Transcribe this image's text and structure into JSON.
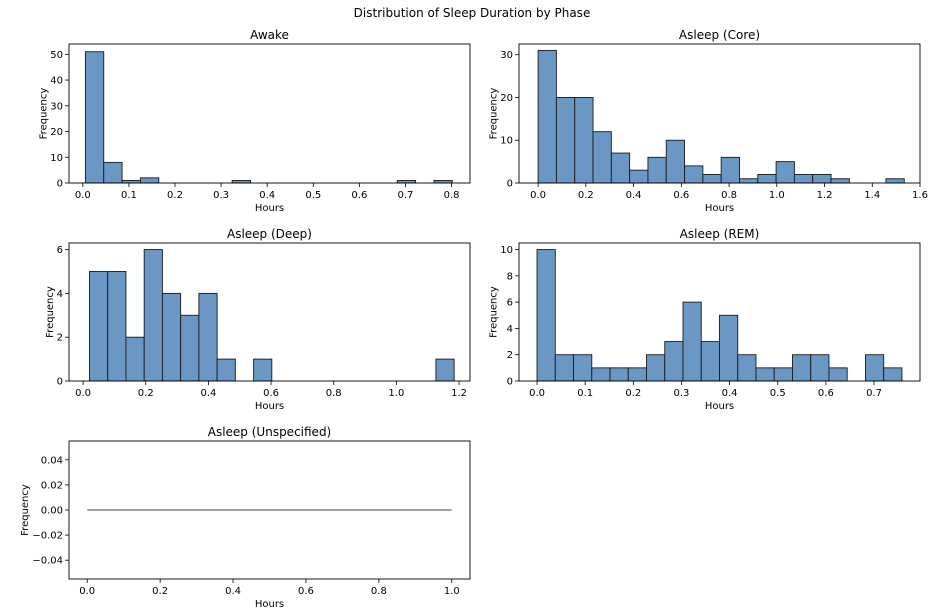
{
  "figure_title": "Distribution of Sleep Duration by Phase",
  "style": {
    "bar_fill": "#6a97c4",
    "bar_edge": "#1a1a1a",
    "flat_line": "#808080"
  },
  "chart_data": [
    {
      "type": "bar",
      "title": "Awake",
      "xlabel": "Hours",
      "ylabel": "Frequency",
      "xlim": [
        -0.03,
        0.84
      ],
      "ylim": [
        0,
        54
      ],
      "xticks": [
        0.0,
        0.1,
        0.2,
        0.3,
        0.4,
        0.5,
        0.6,
        0.7,
        0.8
      ],
      "xtick_labels": [
        "0.0",
        "0.1",
        "0.2",
        "0.3",
        "0.4",
        "0.5",
        "0.6",
        "0.7",
        "0.8"
      ],
      "yticks": [
        0,
        10,
        20,
        30,
        40,
        50
      ],
      "ytick_labels": [
        "0",
        "10",
        "20",
        "30",
        "40",
        "50"
      ],
      "bin_edges": [
        0.0056,
        0.0454,
        0.0852,
        0.125,
        0.1648,
        0.2046,
        0.2444,
        0.2842,
        0.324,
        0.3638,
        0.4036,
        0.4434,
        0.4832,
        0.523,
        0.5628,
        0.6026,
        0.6424,
        0.6822,
        0.722,
        0.7618,
        0.8016
      ],
      "values": [
        51,
        8,
        1,
        2,
        0,
        0,
        0,
        0,
        1,
        0,
        0,
        0,
        0,
        0,
        0,
        0,
        0,
        1,
        0,
        1
      ]
    },
    {
      "type": "bar",
      "title": "Asleep (Core)",
      "xlabel": "Hours",
      "ylabel": "Frequency",
      "xlim": [
        -0.08,
        1.6
      ],
      "ylim": [
        0,
        32.5
      ],
      "xticks": [
        0.0,
        0.2,
        0.4,
        0.6,
        0.8,
        1.0,
        1.2,
        1.4,
        1.6
      ],
      "xtick_labels": [
        "0.0",
        "0.2",
        "0.4",
        "0.6",
        "0.8",
        "1.0",
        "1.2",
        "1.4",
        "1.6"
      ],
      "yticks": [
        0,
        10,
        20,
        30
      ],
      "ytick_labels": [
        "0",
        "10",
        "20",
        "30"
      ],
      "bin_edges": [
        0.0,
        0.0767,
        0.1534,
        0.2301,
        0.3068,
        0.3835,
        0.4602,
        0.5369,
        0.6136,
        0.6903,
        0.767,
        0.8437,
        0.9204,
        0.9971,
        1.0738,
        1.1505,
        1.2272,
        1.3039,
        1.3806,
        1.4573,
        1.534
      ],
      "values": [
        31,
        20,
        20,
        12,
        7,
        3,
        6,
        10,
        4,
        2,
        6,
        1,
        2,
        5,
        2,
        2,
        1,
        0,
        0,
        1
      ]
    },
    {
      "type": "bar",
      "title": "Asleep (Deep)",
      "xlabel": "Hours",
      "ylabel": "Frequency",
      "xlim": [
        -0.045,
        1.235
      ],
      "ylim": [
        0,
        6.3
      ],
      "xticks": [
        0.0,
        0.2,
        0.4,
        0.6,
        0.8,
        1.0,
        1.2
      ],
      "xtick_labels": [
        "0.0",
        "0.2",
        "0.4",
        "0.6",
        "0.8",
        "1.0",
        "1.2"
      ],
      "yticks": [
        0,
        2,
        4,
        6
      ],
      "ytick_labels": [
        "0",
        "2",
        "4",
        "6"
      ],
      "bin_edges": [
        0.0204,
        0.0786,
        0.1368,
        0.195,
        0.2532,
        0.3114,
        0.3696,
        0.4278,
        0.486,
        0.5442,
        0.6024,
        0.6606,
        0.7188,
        0.777,
        0.8352,
        0.8934,
        0.9516,
        1.0098,
        1.068,
        1.1262,
        1.1844
      ],
      "values": [
        5,
        5,
        2,
        6,
        4,
        3,
        4,
        1,
        0,
        1,
        0,
        0,
        0,
        0,
        0,
        0,
        0,
        0,
        0,
        1
      ]
    },
    {
      "type": "bar",
      "title": "Asleep (REM)",
      "xlabel": "Hours",
      "ylabel": "Frequency",
      "xlim": [
        -0.0375,
        0.7955
      ],
      "ylim": [
        0,
        10.5
      ],
      "xticks": [
        0.0,
        0.1,
        0.2,
        0.3,
        0.4,
        0.5,
        0.6,
        0.7
      ],
      "xtick_labels": [
        "0.0",
        "0.1",
        "0.2",
        "0.3",
        "0.4",
        "0.5",
        "0.6",
        "0.7"
      ],
      "yticks": [
        0,
        2,
        4,
        6,
        8,
        10
      ],
      "ytick_labels": [
        "0",
        "2",
        "4",
        "6",
        "8",
        "10"
      ],
      "bin_edges": [
        0.0,
        0.0379,
        0.0758,
        0.1137,
        0.1516,
        0.1895,
        0.2274,
        0.2653,
        0.3032,
        0.3411,
        0.379,
        0.4169,
        0.4548,
        0.4927,
        0.5306,
        0.5685,
        0.6064,
        0.6443,
        0.6822,
        0.7201,
        0.758
      ],
      "values": [
        10,
        2,
        2,
        1,
        1,
        1,
        2,
        3,
        6,
        3,
        5,
        2,
        1,
        1,
        2,
        2,
        1,
        0,
        2,
        1
      ]
    },
    {
      "type": "line",
      "title": "Asleep (Unspecified)",
      "xlabel": "Hours",
      "ylabel": "Frequency",
      "xlim": [
        -0.05,
        1.05
      ],
      "ylim": [
        -0.055,
        0.055
      ],
      "xticks": [
        0.0,
        0.2,
        0.4,
        0.6,
        0.8,
        1.0
      ],
      "xtick_labels": [
        "0.0",
        "0.2",
        "0.4",
        "0.6",
        "0.8",
        "1.0"
      ],
      "yticks": [
        -0.04,
        -0.02,
        0.0,
        0.02,
        0.04
      ],
      "ytick_labels": [
        "−0.04",
        "−0.02",
        "0.00",
        "0.02",
        "0.04"
      ],
      "x": [
        0.0,
        1.0
      ],
      "y": [
        0.0,
        0.0
      ]
    }
  ]
}
